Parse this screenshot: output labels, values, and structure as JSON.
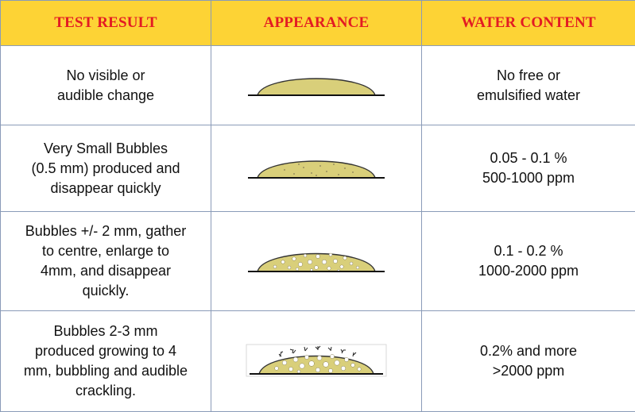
{
  "headers": {
    "test_result": "TEST RESULT",
    "appearance": "APPEARANCE",
    "water_content": "WATER CONTENT"
  },
  "rows": [
    {
      "test_result": [
        "No visible or",
        "audible change"
      ],
      "water_content": [
        "No free or",
        "emulsified water"
      ],
      "appearance_icon": "dome-plain-icon"
    },
    {
      "test_result": [
        "Very Small Bubbles",
        "(0.5 mm) produced and",
        "disappear quickly"
      ],
      "water_content": [
        "0.05 - 0.1 %",
        "500-1000 ppm"
      ],
      "appearance_icon": "dome-fine-bubbles-icon"
    },
    {
      "test_result": [
        "Bubbles +/- 2 mm, gather",
        "to centre, enlarge to",
        "4mm, and disappear",
        "quickly."
      ],
      "water_content": [
        "0.1 - 0.2 %",
        "1000-2000 ppm"
      ],
      "appearance_icon": "dome-medium-bubbles-icon"
    },
    {
      "test_result": [
        "Bubbles 2-3 mm",
        "produced growing to 4",
        "mm, bubbling and audible",
        "crackling."
      ],
      "water_content": [
        "0.2% and more",
        ">2000 ppm"
      ],
      "appearance_icon": "dome-crackling-bubbles-icon"
    }
  ],
  "colors": {
    "header_bg": "#fdd335",
    "header_text": "#e31b23",
    "dome_fill": "#d9cf7a",
    "border": "#8a9bb8"
  }
}
